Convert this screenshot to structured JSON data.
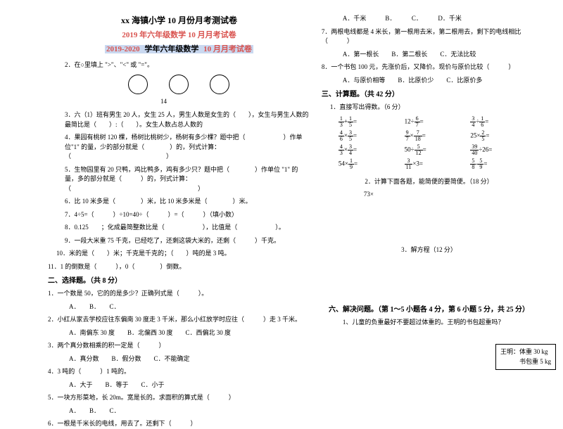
{
  "header": {
    "main": "xx 海镇小学 10 月份月考测试卷",
    "red": "2019 年六年级数学 10 月月考试卷",
    "hl_pre": "2019-2020",
    "hl_mid": " 学年六年级数学 ",
    "hl_suf": "10 月月考试卷"
  },
  "left": {
    "q2": "2．在○里填上 \">\"、\"<\" 或 \"=\"。",
    "circ_label": "14",
    "q3": "3．六（1）班有男生 20 人，女生 25 人，男生人数是女生的（　　），女生与男生人数的最简比是（　　）:（　　）。女生人数占总人数的",
    "q4": "4．果园有桃树 120 棵，杨树比桃树少，杨树有多少棵？题中把（　　　　　　）作单位\"1\" 的量，少的部分就是（　　　　）的，列式计算：（　　　　　　　　　　　　　　　）",
    "q5": "5．生物园里有 20 只鸭，鸡比鸭多，鸡有多少只？题中把（　　　　）作单位 \"1\" 的量，多的部分就是（　　　）的，列式计算：（　　　　　　　　　　　　　　　　　　　　）",
    "q6": "6．比 10 米多是（　　　　）米，比 10 米多米是（　　　　）米。",
    "q7": "7．4÷5=（　　　）÷10=40÷（　　　）=（　　　）（填小数）",
    "q8": "8．0.125　　；化成最简整数比是（　　　　　　），比值是（　　　　　　）。",
    "q9": "9．一段大米重 75 千克，已经吃了，还剩这袋大米的，还剩（　　　）千克。",
    "q10": "10．米的是（　　）米；千克是千克的；（　　）吨的是 3 吨。",
    "q11": "11．1 的倒数是（　　　），0（　　　　）倒数。",
    "sec2_title": "二、选择题。（共 8 分）",
    "s2q1": "1．一个数是 50，它的的是多少？正确列式是（　　　）。",
    "s2q1_opts": "A．　　B．　　C．",
    "s2q2": "2．小红从家去学校应往东偏南 30 度走 3 千米，那么小红放学时应往（　　　）走 3 千米。",
    "s2q2_opts": "A．南偏东 30 度　　B．北偏西 30 度　　C．西偏北 30 度",
    "s2q3": "3．两个真分数相乘的积一定是（　　　）",
    "s2q3_opts": "A．真分数　　B．假分数　　C．不能确定",
    "s2q4": "4．3 吨的（　　　）1 吨的。",
    "s2q4_opts": "A．大于　　B．等于　　C．小于",
    "s2q5": "5．一块方形菜地，长 20m。宽是长的。求面积的算式是（　　　）",
    "s2q5_opts": "A．　　B．　　C．",
    "s2q6": "6．一根是千米长的电线，用去了。还剩下（　　　）"
  },
  "right": {
    "r_opts1": "A．千米　　　B．　　　C．　　　D．千米",
    "q7r": "7．两根电线都是 4 米长，第一根用去米，第二根用去，剩下的电线相比（　　　）",
    "q7r_opts": "A．第一根长　　B．第二根长　　C．无法比较",
    "q8r": "8．一个书包 100 元，先涨价后，又降价。现价与原价比较（　　　）",
    "q8r_opts": "A．与原价相等　　B．比原价少　　C．比原价多",
    "sec3_title": "三、计算题。（共 42 分）",
    "c1_label": "1．直接写出得数。（6 分）",
    "calc": [
      [
        "\\f{1}{3}+\\f{1}{5}=",
        "12÷\\f{6}{7}=",
        "\\f{3}{4}÷\\f{1}{6}="
      ],
      [
        "\\f{4}{6}×\\f{3}{5}=",
        "\\f{9}{7}×\\f{7}{18}=",
        "25×\\f{2}{5}="
      ],
      [
        "\\f{4}{3}×\\f{3}{4}=",
        "50÷\\f{5}{12}=",
        "\\f{39}{40}÷26="
      ],
      [
        "54×\\f{1}{9}=",
        "\\f{3}{11}×3=",
        "\\f{5}{8}-\\f{5}{9}="
      ]
    ],
    "c2_label": "2．计算下面各题，能简便的要简便。（18 分）",
    "c2_item": "73×",
    "c3_label": "3．解方程（12 分）",
    "sec6_title": "六、解决问题。（第 1～5 小题各 4 分，第 6 小题 5 分，共 25 分）",
    "s6q1": "1、儿童的负重最好不要超过体重的。王明的书包超重吗？",
    "callout_l1": "王明：体重 30 kg",
    "callout_l2": "　　　书包重 5 kg"
  }
}
